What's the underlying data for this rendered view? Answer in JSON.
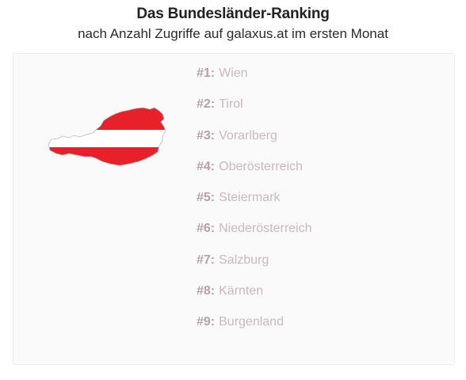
{
  "header": {
    "title": "Das Bundesländer-Ranking",
    "subtitle": "nach Anzahl Zugriffe auf galaxus.at im ersten Monat"
  },
  "map": {
    "icon": "austria-flag-map-icon",
    "colors": {
      "red": "#e8202a",
      "white": "#ffffff",
      "outline": "#bbbbbb"
    }
  },
  "ranking": [
    {
      "rank": "#1:",
      "name": "Wien"
    },
    {
      "rank": "#2:",
      "name": "Tirol"
    },
    {
      "rank": "#3:",
      "name": "Vorarlberg"
    },
    {
      "rank": "#4:",
      "name": "Oberösterreich"
    },
    {
      "rank": "#5:",
      "name": "Steiermark"
    },
    {
      "rank": "#6:",
      "name": "Niederösterreich"
    },
    {
      "rank": "#7:",
      "name": "Salzburg"
    },
    {
      "rank": "#8:",
      "name": "Kärnten"
    },
    {
      "rank": "#9:",
      "name": "Burgenland"
    }
  ]
}
